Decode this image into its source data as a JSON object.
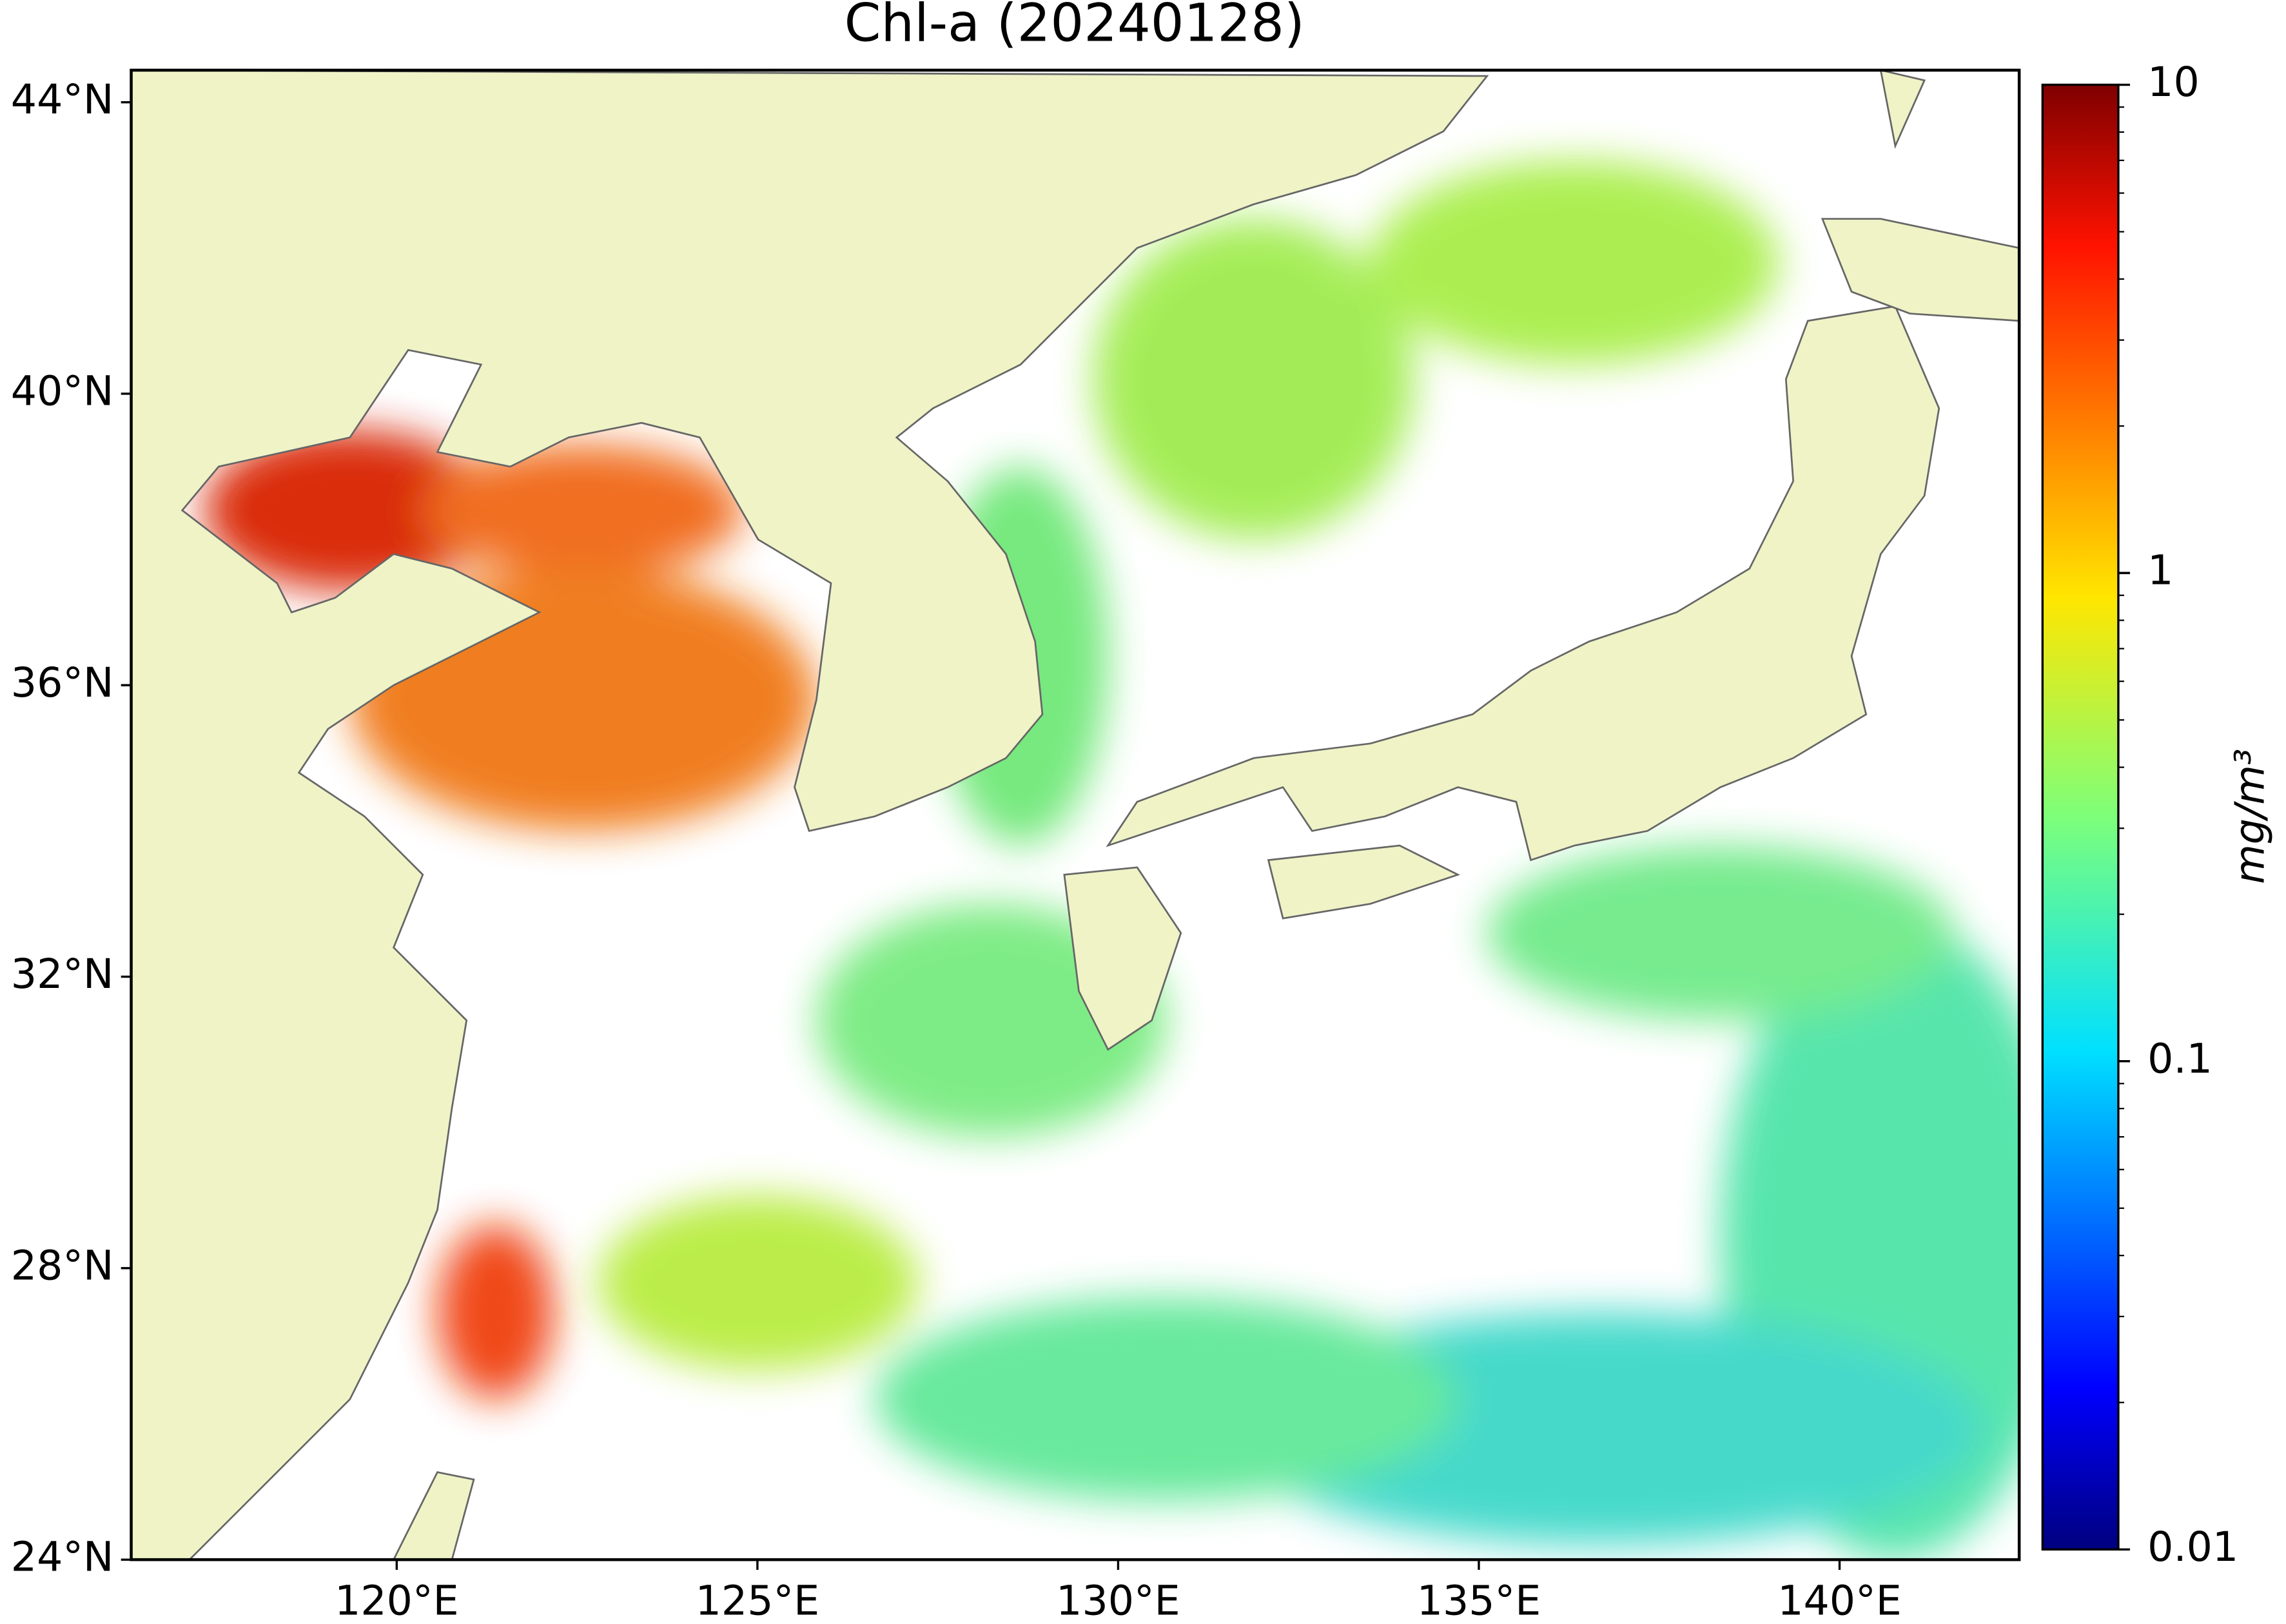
{
  "chart_data": {
    "type": "map",
    "title": "Chl-a (20240128)",
    "xlim": [
      116.32,
      142.49
    ],
    "ylim": [
      24,
      44.44
    ],
    "xticks": [
      {
        "value": 120,
        "label": "120°E"
      },
      {
        "value": 125,
        "label": "125°E"
      },
      {
        "value": 130,
        "label": "130°E"
      },
      {
        "value": 135,
        "label": "135°E"
      },
      {
        "value": 140,
        "label": "140°E"
      }
    ],
    "yticks": [
      {
        "value": 24,
        "label": "24°N"
      },
      {
        "value": 28,
        "label": "28°N"
      },
      {
        "value": 32,
        "label": "32°N"
      },
      {
        "value": 36,
        "label": "36°N"
      },
      {
        "value": 40,
        "label": "40°N"
      },
      {
        "value": 44,
        "label": "44°N"
      }
    ],
    "colorbar": {
      "label": "mg/m³",
      "lim": [
        0.01,
        10
      ],
      "ticks": [
        0.01,
        0.1,
        1,
        10
      ],
      "scale": "log",
      "colormap": "jet"
    }
  }
}
